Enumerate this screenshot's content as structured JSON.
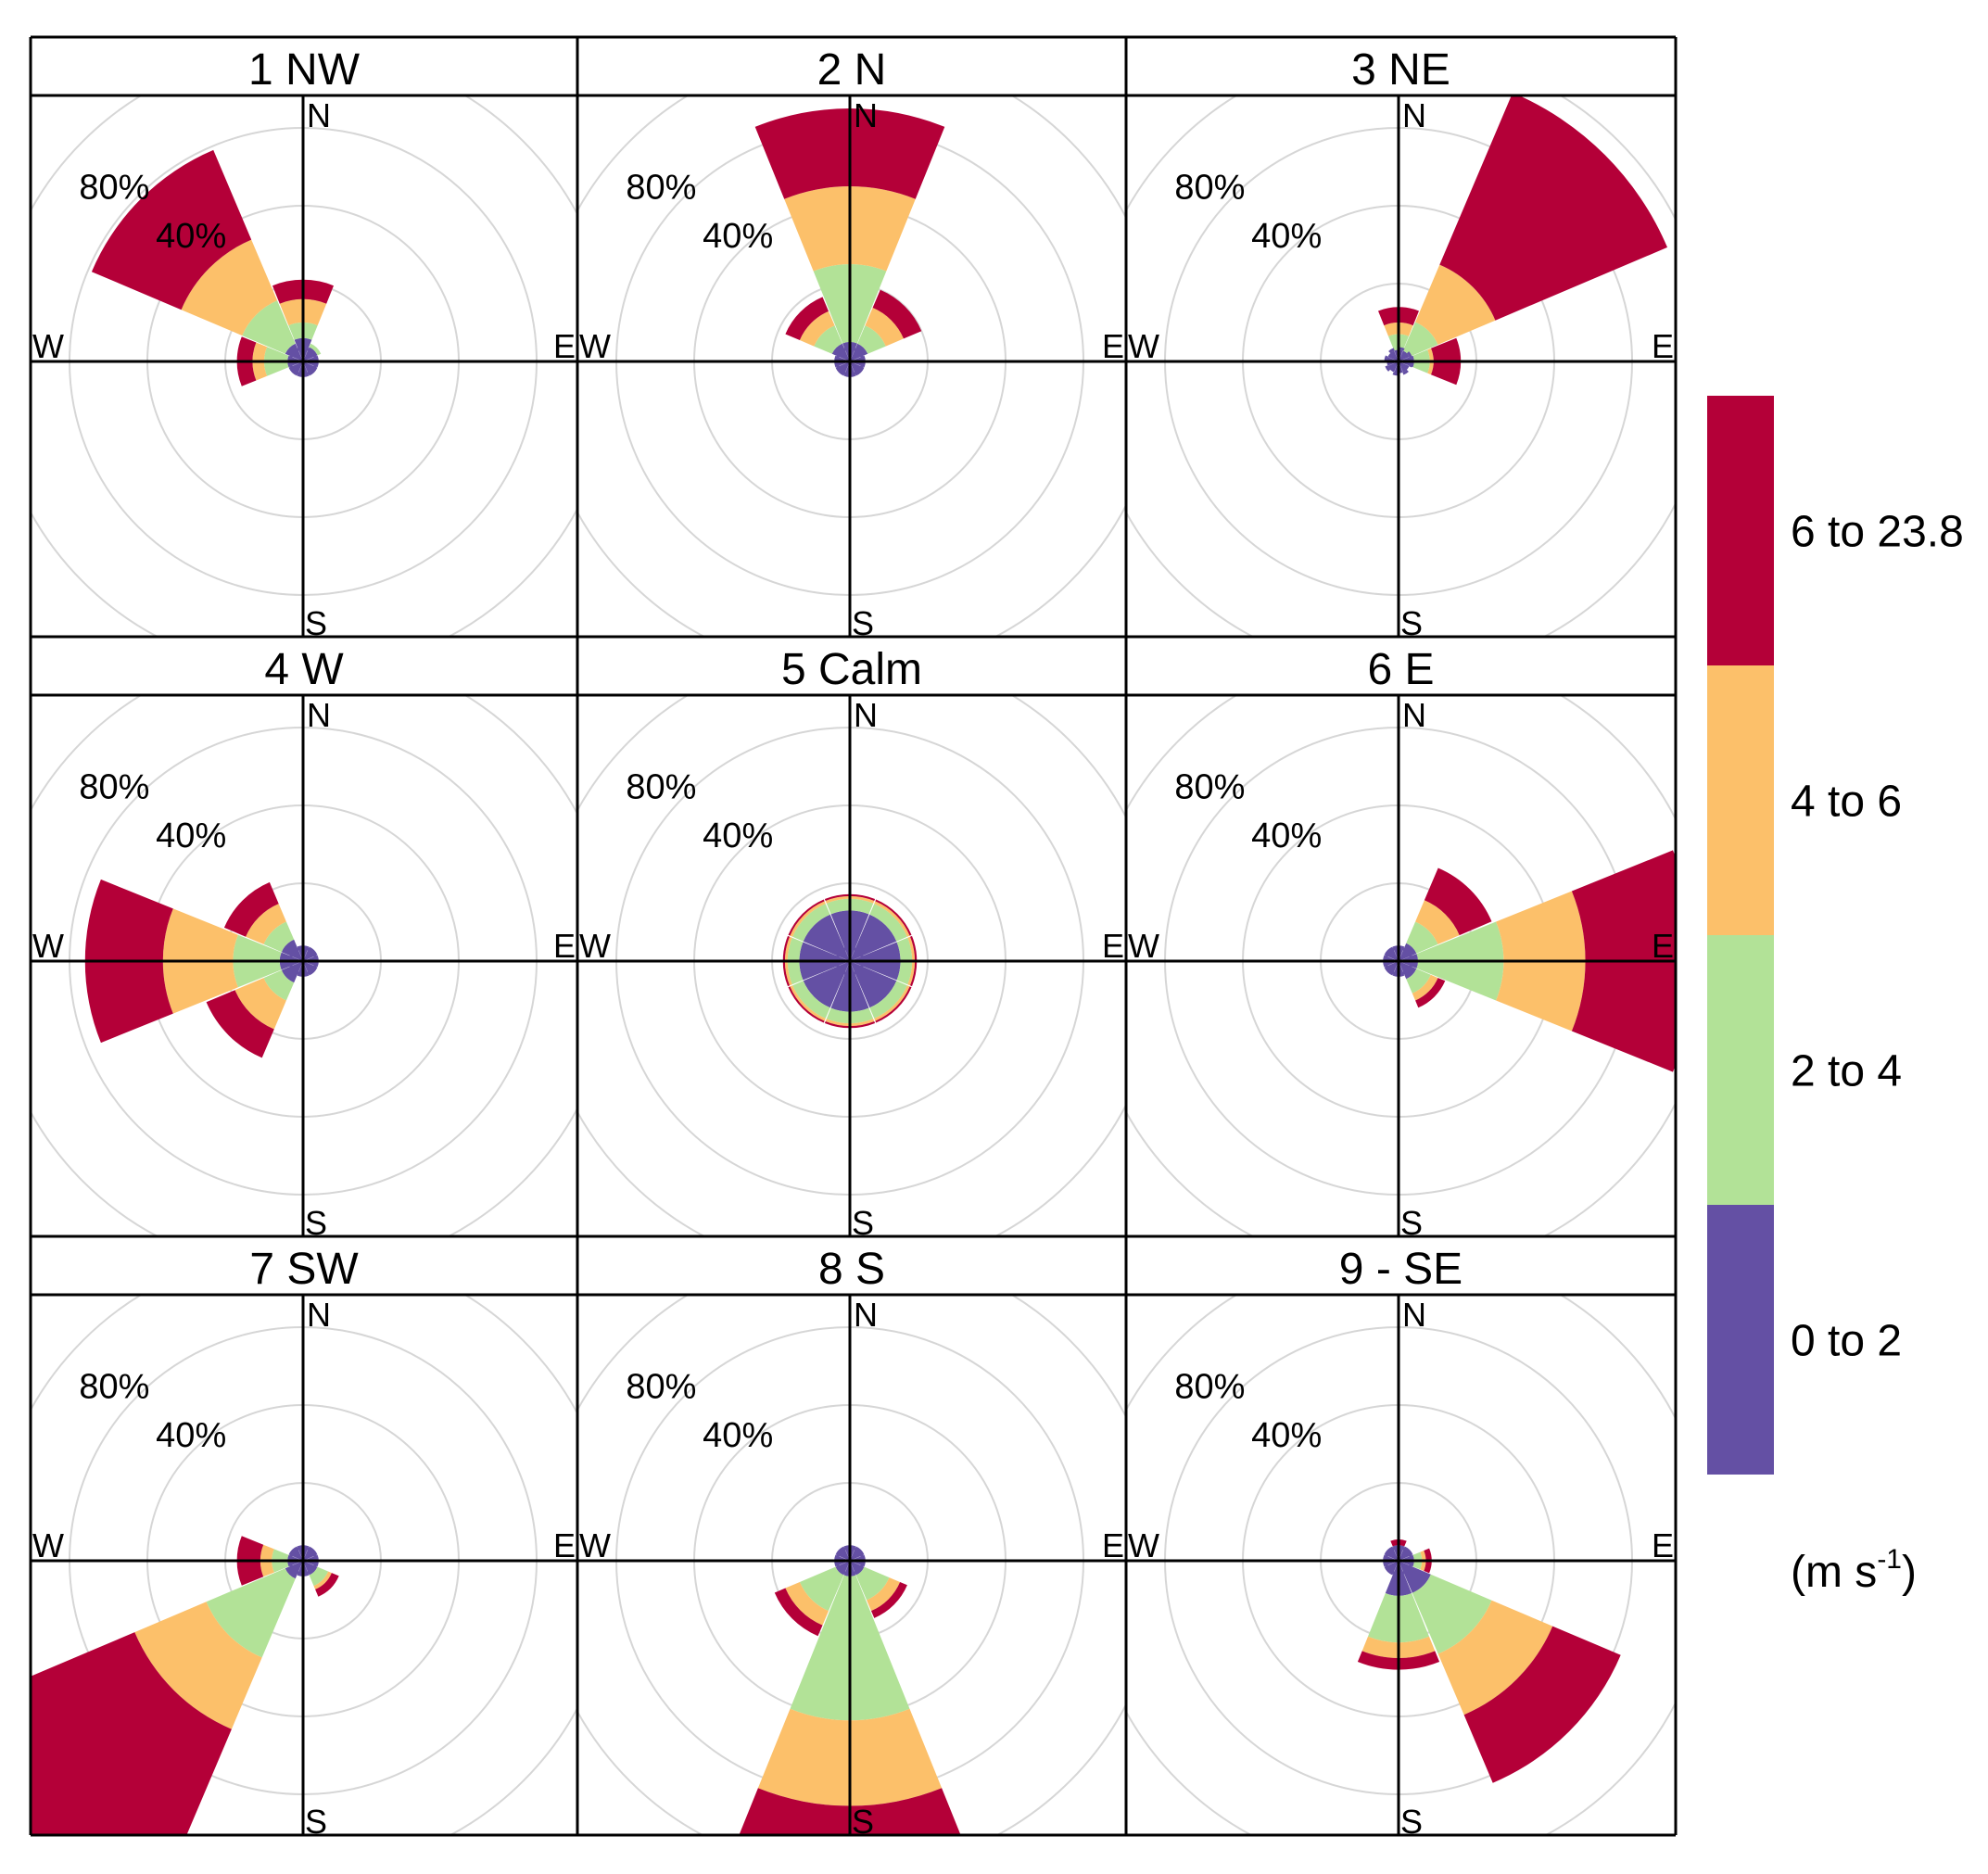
{
  "chart_data": {
    "type": "windrose",
    "panels": [
      {
        "title": "1 NW",
        "petals": [
          {
            "dir": 0,
            "values": [
              6,
              4,
              6,
              5
            ]
          },
          {
            "dir": 45,
            "values": [
              4,
              1,
              0,
              0
            ]
          },
          {
            "dir": 90,
            "values": [
              4,
              0,
              0,
              0
            ]
          },
          {
            "dir": 135,
            "values": [
              4,
              0,
              0,
              0
            ]
          },
          {
            "dir": 180,
            "values": [
              4,
              0,
              0,
              0
            ]
          },
          {
            "dir": 225,
            "values": [
              4,
              0,
              0,
              0
            ]
          },
          {
            "dir": 270,
            "values": [
              4,
              6,
              3,
              4
            ]
          },
          {
            "dir": 315,
            "values": [
              5,
              12,
              17,
              25
            ]
          }
        ]
      },
      {
        "title": "2 N",
        "petals": [
          {
            "dir": 0,
            "values": [
              5,
              20,
              20,
              20
            ]
          },
          {
            "dir": 45,
            "values": [
              5,
              5,
              5,
              5
            ]
          },
          {
            "dir": 90,
            "values": [
              4,
              0,
              0,
              0
            ]
          },
          {
            "dir": 135,
            "values": [
              4,
              0,
              0,
              0
            ]
          },
          {
            "dir": 180,
            "values": [
              4,
              0,
              0,
              0
            ]
          },
          {
            "dir": 225,
            "values": [
              4,
              0,
              0,
              0
            ]
          },
          {
            "dir": 270,
            "values": [
              4,
              0,
              0,
              0
            ]
          },
          {
            "dir": 315,
            "values": [
              5,
              5,
              4,
              4
            ]
          }
        ]
      },
      {
        "title": "3 NE",
        "petals": [
          {
            "dir": 0,
            "values": [
              3,
              4,
              3,
              4
            ]
          },
          {
            "dir": 45,
            "values": [
              3,
              8,
              16,
              48
            ]
          },
          {
            "dir": 90,
            "values": [
              4,
              4,
              1,
              7
            ]
          },
          {
            "dir": 135,
            "values": [
              3,
              0,
              0,
              0
            ]
          },
          {
            "dir": 180,
            "values": [
              3,
              0,
              0,
              0
            ]
          },
          {
            "dir": 225,
            "values": [
              3,
              0,
              0,
              0
            ]
          },
          {
            "dir": 270,
            "values": [
              3,
              0,
              0,
              0
            ]
          },
          {
            "dir": 315,
            "values": [
              3,
              0,
              0,
              0
            ]
          }
        ]
      },
      {
        "title": "4 W",
        "petals": [
          {
            "dir": 0,
            "values": [
              4,
              0,
              0,
              0
            ]
          },
          {
            "dir": 45,
            "values": [
              4,
              0,
              0,
              0
            ]
          },
          {
            "dir": 90,
            "values": [
              4,
              0,
              0,
              0
            ]
          },
          {
            "dir": 135,
            "values": [
              4,
              0,
              0,
              0
            ]
          },
          {
            "dir": 180,
            "values": [
              4,
              0,
              0,
              0
            ]
          },
          {
            "dir": 225,
            "values": [
              6,
              5,
              8,
              8
            ]
          },
          {
            "dir": 270,
            "values": [
              6,
              12,
              18,
              20
            ]
          },
          {
            "dir": 315,
            "values": [
              6,
              5,
              5,
              6
            ]
          }
        ]
      },
      {
        "title": "5 Calm",
        "petals": [
          {
            "dir": 0,
            "values": [
              13,
              3,
              0.7,
              0.5
            ]
          },
          {
            "dir": 45,
            "values": [
              13,
              3,
              0.7,
              0.5
            ]
          },
          {
            "dir": 90,
            "values": [
              13,
              3,
              0.7,
              0.5
            ]
          },
          {
            "dir": 135,
            "values": [
              13,
              3,
              0.7,
              0.5
            ]
          },
          {
            "dir": 180,
            "values": [
              13,
              3,
              0.7,
              0.5
            ]
          },
          {
            "dir": 225,
            "values": [
              13,
              3,
              0.7,
              0.5
            ]
          },
          {
            "dir": 270,
            "values": [
              13,
              3,
              0.7,
              0.5
            ]
          },
          {
            "dir": 315,
            "values": [
              13,
              3,
              0.7,
              0.5
            ]
          }
        ]
      },
      {
        "title": "6 E",
        "petals": [
          {
            "dir": 0,
            "values": [
              4,
              0,
              0,
              0
            ]
          },
          {
            "dir": 45,
            "values": [
              5,
              6,
              6,
              9
            ]
          },
          {
            "dir": 90,
            "values": [
              5,
              22,
              21,
              28
            ]
          },
          {
            "dir": 135,
            "values": [
              5,
              4,
              2,
              2
            ]
          },
          {
            "dir": 180,
            "values": [
              4,
              0,
              0,
              0
            ]
          },
          {
            "dir": 225,
            "values": [
              4,
              0,
              0,
              0
            ]
          },
          {
            "dir": 270,
            "values": [
              4,
              0,
              0,
              0
            ]
          },
          {
            "dir": 315,
            "values": [
              4,
              0,
              0,
              0
            ]
          }
        ]
      },
      {
        "title": "7 SW",
        "petals": [
          {
            "dir": 0,
            "values": [
              4,
              0,
              0,
              0
            ]
          },
          {
            "dir": 45,
            "values": [
              4,
              0,
              0,
              0
            ]
          },
          {
            "dir": 90,
            "values": [
              4,
              0,
              0,
              0
            ]
          },
          {
            "dir": 135,
            "values": [
              4,
              3,
              1,
              2
            ]
          },
          {
            "dir": 180,
            "values": [
              4,
              0,
              0,
              0
            ]
          },
          {
            "dir": 225,
            "values": [
              5,
              22,
              20,
              53
            ]
          },
          {
            "dir": 270,
            "values": [
              4,
              4,
              3,
              6
            ]
          },
          {
            "dir": 315,
            "values": [
              4,
              0,
              0,
              0
            ]
          }
        ]
      },
      {
        "title": "8 S",
        "petals": [
          {
            "dir": 0,
            "values": [
              4,
              0,
              0,
              0
            ]
          },
          {
            "dir": 45,
            "values": [
              4,
              0,
              0,
              0
            ]
          },
          {
            "dir": 90,
            "values": [
              4,
              0,
              0,
              0
            ]
          },
          {
            "dir": 135,
            "values": [
              4,
              7,
              3,
              2
            ]
          },
          {
            "dir": 180,
            "values": [
              4,
              37,
              22,
              15
            ]
          },
          {
            "dir": 225,
            "values": [
              4,
              10,
              4,
              3
            ]
          },
          {
            "dir": 270,
            "values": [
              4,
              0,
              0,
              0
            ]
          },
          {
            "dir": 315,
            "values": [
              4,
              0,
              0,
              0
            ]
          }
        ]
      },
      {
        "title": "9 - SE",
        "petals": [
          {
            "dir": 0,
            "values": [
              4,
              0,
              0,
              1.5
            ]
          },
          {
            "dir": 45,
            "values": [
              4,
              0,
              0,
              0
            ]
          },
          {
            "dir": 90,
            "values": [
              4,
              2,
              1,
              1.5
            ]
          },
          {
            "dir": 135,
            "values": [
              9,
              17,
              17,
              19
            ]
          },
          {
            "dir": 180,
            "values": [
              9,
              12,
              4,
              3
            ]
          },
          {
            "dir": 225,
            "values": [
              4,
              0,
              0,
              0
            ]
          },
          {
            "dir": 270,
            "values": [
              4,
              0,
              0,
              0
            ]
          },
          {
            "dir": 315,
            "values": [
              4,
              0,
              0,
              0
            ]
          }
        ]
      }
    ],
    "ring_labels": [
      "40%",
      "80%"
    ],
    "compass": {
      "n": "N",
      "e": "E",
      "s": "S",
      "w": "W"
    },
    "legend": {
      "bins": [
        "0 to 2",
        "2 to 4",
        "4 to 6",
        "6 to 23.8"
      ],
      "colors": [
        "#6450A4",
        "#B2E297",
        "#FCC06A",
        "#B40038"
      ],
      "units": "(m s",
      "units_sup": "-1",
      "units_close": ")"
    }
  }
}
